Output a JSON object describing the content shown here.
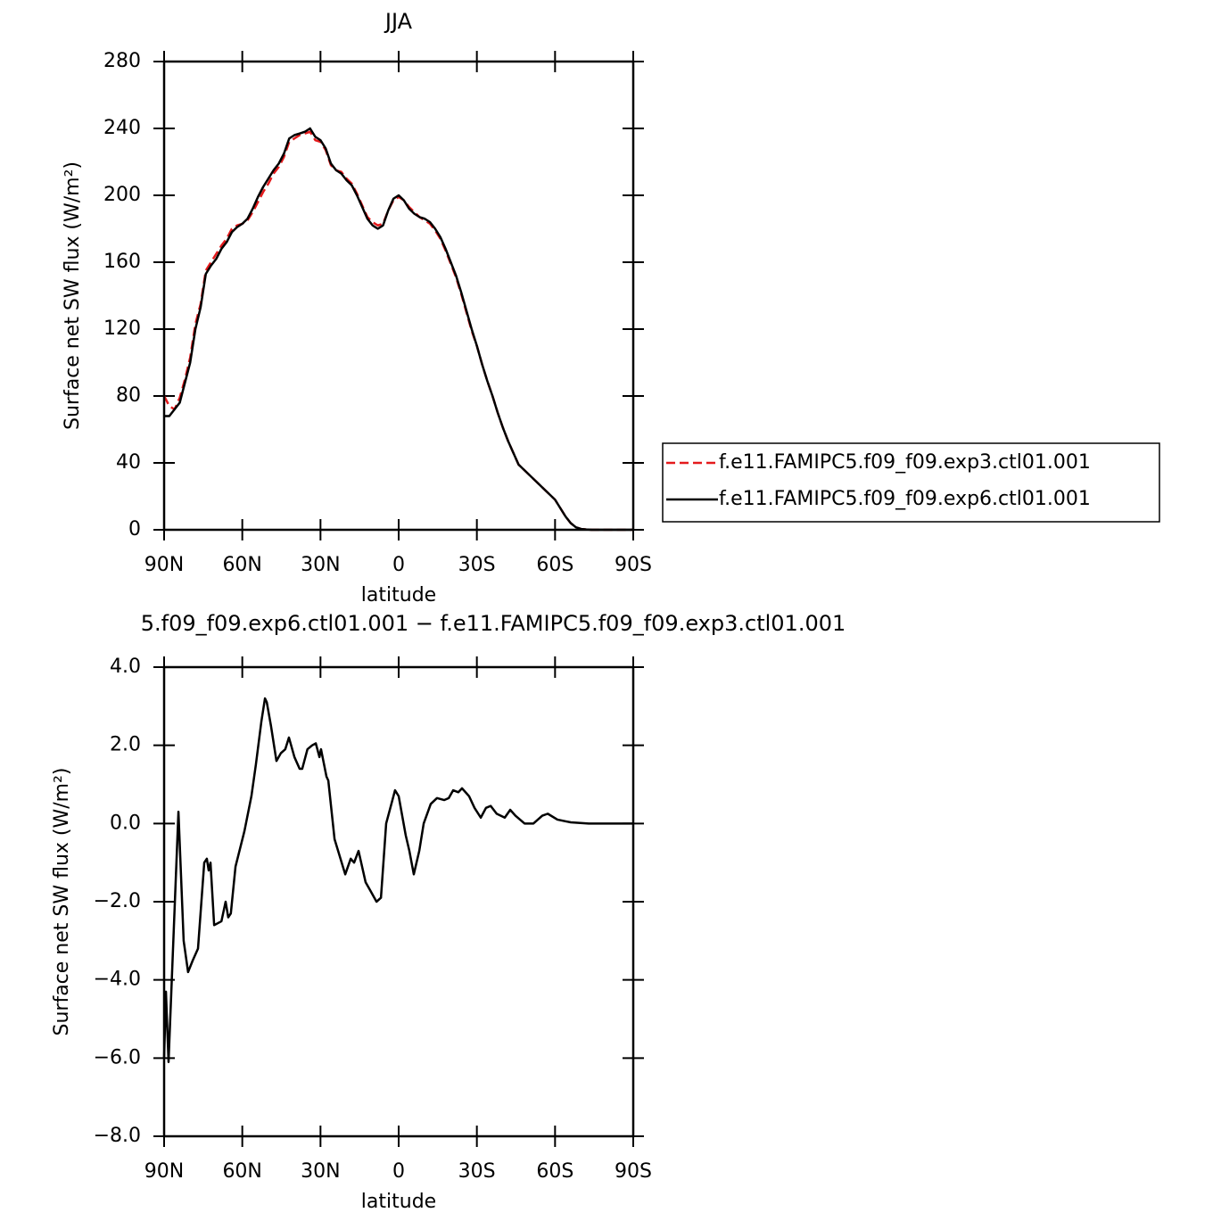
{
  "chart_data": [
    {
      "type": "line",
      "title": "JJA",
      "xlabel": "latitude",
      "ylabel": "Surface net SW flux (W/m²)",
      "x": [
        90,
        88,
        86,
        84,
        82,
        80,
        78,
        76,
        74,
        72,
        70,
        68,
        66,
        64,
        62,
        60,
        58,
        56,
        54,
        52,
        50,
        48,
        46,
        44,
        42,
        40,
        38,
        36,
        34,
        32,
        30,
        28,
        26,
        24,
        22,
        20,
        18,
        16,
        14,
        12,
        10,
        8,
        6,
        4,
        2,
        0,
        -2,
        -4,
        -6,
        -8,
        -10,
        -12,
        -14,
        -16,
        -18,
        -20,
        -22,
        -24,
        -26,
        -28,
        -30,
        -32,
        -34,
        -36,
        -38,
        -40,
        -42,
        -44,
        -46,
        -48,
        -50,
        -52,
        -54,
        -56,
        -58,
        -60,
        -62,
        -64,
        -66,
        -68,
        -70,
        -72,
        -74,
        -76,
        -78,
        -80,
        -82,
        -84,
        -86,
        -88,
        -90
      ],
      "series": [
        {
          "name": "f.e11.FAMIPC5.f09_f09.exp3.ctl01.001",
          "color": "#e41a1c",
          "linestyle": "dashed",
          "values": [
            80,
            74,
            72,
            79,
            90,
            103,
            123,
            135,
            155,
            160,
            165,
            170,
            174,
            180,
            182,
            183,
            185,
            190,
            196,
            202,
            207,
            213,
            217,
            223,
            232,
            234,
            236,
            237,
            238,
            233,
            232,
            227,
            218,
            215,
            214,
            210,
            207,
            201,
            194,
            187,
            184,
            182,
            183,
            191,
            197,
            199,
            197,
            193,
            190,
            187,
            185,
            183,
            179,
            174,
            167,
            159,
            151,
            141,
            130,
            119,
            110,
            99,
            89,
            80,
            70,
            61,
            53,
            46,
            39,
            36,
            33,
            30,
            27,
            24,
            21,
            18,
            13,
            8,
            4,
            1.5,
            0.5,
            0.2,
            0,
            0,
            0,
            0,
            0,
            0,
            0,
            0,
            0
          ]
        },
        {
          "name": "f.e11.FAMIPC5.f09_f09.exp6.ctl01.001",
          "color": "#000000",
          "linestyle": "solid",
          "values": [
            68,
            68,
            72,
            76,
            88,
            100,
            120,
            133,
            153,
            158,
            162,
            168,
            172,
            178,
            181,
            183,
            186,
            192,
            199,
            205,
            210,
            215,
            219,
            225,
            234,
            236,
            237,
            238,
            240,
            235,
            233,
            228,
            219,
            215,
            213,
            209,
            206,
            200,
            193,
            186,
            182,
            180,
            182,
            191,
            198,
            200,
            197,
            192,
            189,
            187,
            186,
            184,
            180,
            175,
            168,
            160,
            152,
            142,
            131,
            120,
            110,
            99,
            89,
            80,
            70,
            61,
            53,
            46,
            39,
            36,
            33,
            30,
            27,
            24,
            21,
            18,
            13,
            8,
            4,
            1.5,
            0.5,
            0.2,
            0,
            0,
            0,
            0,
            0,
            0,
            0,
            0,
            0
          ]
        }
      ],
      "xlim": [
        90,
        -90
      ],
      "xticks": [
        {
          "value": 90,
          "label": "90N"
        },
        {
          "value": 60,
          "label": "60N"
        },
        {
          "value": 30,
          "label": "30N"
        },
        0,
        {
          "value": -30,
          "label": "30S"
        },
        {
          "value": -60,
          "label": "60S"
        },
        {
          "value": -90,
          "label": "90S"
        }
      ],
      "ylim": [
        0,
        280
      ],
      "yticks": [
        0,
        40,
        80,
        120,
        160,
        200,
        240,
        280
      ]
    },
    {
      "type": "line",
      "title": "5.f09_f09.exp6.ctl01.001 − f.e11.FAMIPC5.f09_f09.exp3.ctl01.001",
      "xlabel": "latitude",
      "ylabel": "Surface net SW flux (W/m²)",
      "x": [
        90,
        89.3,
        88.3,
        84.5,
        82.5,
        80.8,
        79,
        77,
        74.6,
        73.6,
        72.9,
        72.2,
        70.8,
        68,
        66.4,
        65.4,
        64.4,
        62.6,
        59.2,
        56.5,
        54.8,
        52.7,
        51.3,
        50.6,
        49,
        46.9,
        45.2,
        43.5,
        42.1,
        40,
        38,
        37,
        35,
        33.2,
        31.8,
        30.4,
        29.8,
        27.7,
        27,
        24.6,
        20.5,
        18.4,
        17.1,
        15.4,
        12.7,
        11,
        8.5,
        6.8,
        4.8,
        2.4,
        1.4,
        0,
        -2.7,
        -4.1,
        -5.8,
        -7.9,
        -9.6,
        -12.3,
        -14.7,
        -17.5,
        -19.2,
        -20.9,
        -22.9,
        -24.3,
        -27,
        -29.1,
        -31.5,
        -33.5,
        -35.3,
        -37.6,
        -40.7,
        -42.8,
        -44.8,
        -48.3,
        -51.7,
        -55.1,
        -57.2,
        -60.9,
        -66,
        -72.9,
        -90
      ],
      "values": [
        -6.0,
        -4.3,
        -6.1,
        0.3,
        -3.0,
        -3.8,
        -3.5,
        -3.2,
        -1.0,
        -0.9,
        -1.2,
        -1.0,
        -2.6,
        -2.5,
        -2.0,
        -2.4,
        -2.3,
        -1.1,
        -0.2,
        0.7,
        1.5,
        2.6,
        3.2,
        3.1,
        2.5,
        1.6,
        1.8,
        1.9,
        2.2,
        1.7,
        1.4,
        1.4,
        1.9,
        2.0,
        2.05,
        1.7,
        1.9,
        1.2,
        1.1,
        -0.4,
        -1.3,
        -0.9,
        -1.0,
        -0.7,
        -1.5,
        -1.7,
        -2.0,
        -1.9,
        0,
        0.6,
        0.85,
        0.7,
        -0.3,
        -0.7,
        -1.3,
        -0.7,
        0,
        0.5,
        0.65,
        0.6,
        0.65,
        0.85,
        0.8,
        0.9,
        0.7,
        0.4,
        0.15,
        0.4,
        0.45,
        0.25,
        0.15,
        0.35,
        0.2,
        0,
        0,
        0.2,
        0.25,
        0.1,
        0.03,
        0,
        0
      ],
      "color": "#000000",
      "linestyle": "solid",
      "xlim": [
        90,
        -90
      ],
      "xticks": [
        {
          "value": 90,
          "label": "90N"
        },
        {
          "value": 60,
          "label": "60N"
        },
        {
          "value": 30,
          "label": "30N"
        },
        0,
        {
          "value": -30,
          "label": "30S"
        },
        {
          "value": -60,
          "label": "60S"
        },
        {
          "value": -90,
          "label": "90S"
        }
      ],
      "ylim": [
        -8,
        4
      ],
      "yticks": [
        {
          "value": -8,
          "label": "−8.0"
        },
        {
          "value": -6,
          "label": "−6.0"
        },
        {
          "value": -4,
          "label": "−4.0"
        },
        {
          "value": -2,
          "label": "−2.0"
        },
        {
          "value": 0,
          "label": "0.0"
        },
        {
          "value": 2,
          "label": "2.0"
        },
        {
          "value": 4,
          "label": "4.0"
        }
      ]
    }
  ]
}
